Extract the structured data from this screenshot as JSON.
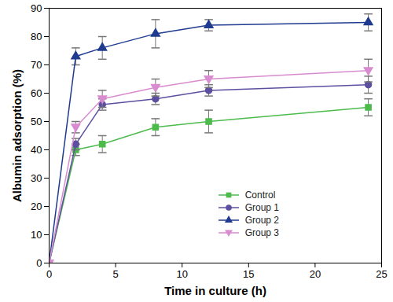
{
  "chart_data": {
    "type": "line",
    "x_label": "Time in culture (h)",
    "y_label": "Albumin adsorption (%)",
    "x": [
      0,
      2,
      4,
      8,
      12,
      24
    ],
    "series": [
      {
        "name": "Control",
        "color": "#4cbb4c",
        "marker": "square",
        "values": [
          0,
          40,
          42,
          48,
          50,
          55
        ],
        "error": [
          0,
          2,
          3,
          3,
          4,
          3
        ]
      },
      {
        "name": "Group 1",
        "color": "#5c4fa0",
        "marker": "circle",
        "values": [
          0,
          42,
          56,
          58,
          61,
          63
        ],
        "error": [
          0,
          2,
          2,
          2,
          2,
          3
        ]
      },
      {
        "name": "Group 2",
        "color": "#1f3b8f",
        "marker": "triangle",
        "values": [
          0,
          73,
          76,
          81,
          84,
          85
        ],
        "error": [
          0,
          3,
          4,
          5,
          2,
          3
        ]
      },
      {
        "name": "Group 3",
        "color": "#d98bd0",
        "marker": "triangle-down",
        "values": [
          0,
          48,
          58,
          62,
          65,
          68
        ],
        "error": [
          0,
          2,
          3,
          3,
          3,
          4
        ]
      }
    ],
    "xlim": [
      0,
      25
    ],
    "xticks": [
      0,
      5,
      10,
      15,
      20,
      25
    ],
    "ylim": [
      0,
      90
    ],
    "yticks": [
      0,
      10,
      20,
      30,
      40,
      50,
      60,
      70,
      80,
      90
    ],
    "grid": false,
    "legend": "lower right"
  }
}
